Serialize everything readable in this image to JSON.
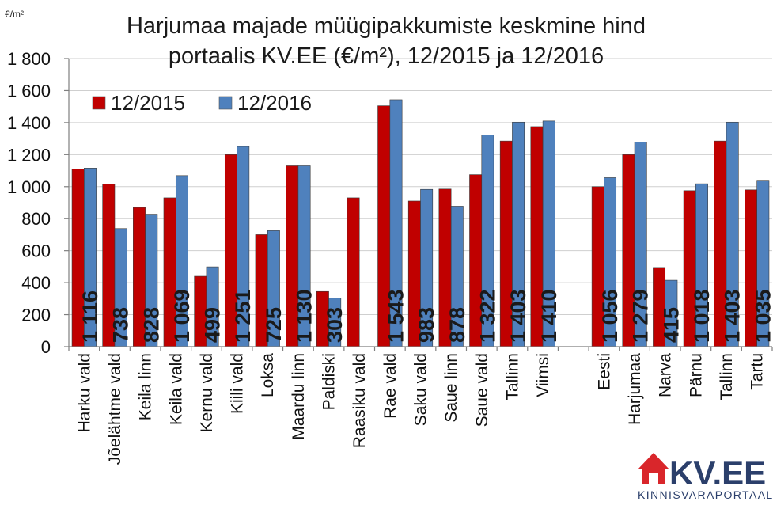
{
  "chart_data": {
    "type": "bar",
    "title_lines": [
      "Harjumaa majade müügipakkumiste keskmine hind",
      "portaalis KV.EE (€/m²), 12/2015 ja 12/2016"
    ],
    "unit_label": "€/m²",
    "xlabel": "",
    "ylabel": "",
    "ylim": [
      0,
      1800
    ],
    "yticks": [
      0,
      200,
      400,
      600,
      800,
      1000,
      1200,
      1400,
      1600,
      1800
    ],
    "ytick_labels": [
      "0",
      "200",
      "400",
      "600",
      "800",
      "1 000",
      "1 200",
      "1 400",
      "1 600",
      "1 800"
    ],
    "grid": true,
    "legend_position": "top-left",
    "categories": [
      "Harku vald",
      "Jõelähtme vald",
      "Keila linn",
      "Keila vald",
      "Kernu vald",
      "Kiili vald",
      "Loksa",
      "Maardu linn",
      "Paldiski",
      "Raasiku vald",
      "Rae vald",
      "Saku vald",
      "Saue linn",
      "Saue vald",
      "Tallinn",
      "Viimsi",
      "",
      "Eesti",
      "Harjumaa",
      "Narva",
      "Pärnu",
      "Tallinn",
      "Tartu"
    ],
    "series": [
      {
        "name": "12/2015",
        "color": "#c00000",
        "values": [
          1110,
          1015,
          870,
          930,
          440,
          1200,
          700,
          1130,
          345,
          930,
          1505,
          910,
          985,
          1075,
          1285,
          1375,
          null,
          1000,
          1200,
          495,
          975,
          1285,
          980
        ]
      },
      {
        "name": "12/2016",
        "color": "#4f81bd",
        "values": [
          1116,
          738,
          828,
          1069,
          499,
          1251,
          725,
          1130,
          303,
          null,
          1543,
          983,
          878,
          1322,
          1403,
          1410,
          null,
          1056,
          1279,
          415,
          1018,
          1403,
          1035
        ]
      }
    ],
    "data_labels": [
      "1 116",
      "738",
      "828",
      "1 069",
      "499",
      "1 251",
      "725",
      "1 130",
      "303",
      "",
      "1 543",
      "983",
      "878",
      "1 322",
      "1 403",
      "1 410",
      "",
      "1 056",
      "1 279",
      "415",
      "1 018",
      "1 403",
      "1 035"
    ]
  },
  "logo": {
    "word": "KV.EE",
    "tagline": "KINNISVARAPORTAAL",
    "house_color": "#d9262b",
    "text_color": "#2b3f6b"
  }
}
